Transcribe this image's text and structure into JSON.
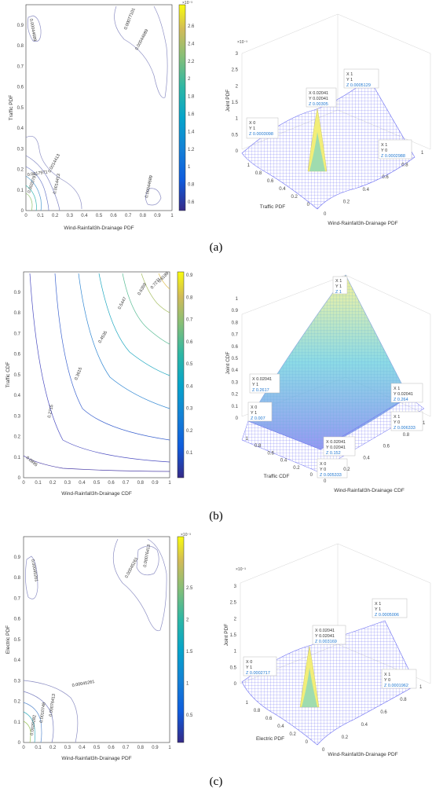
{
  "panels": [
    {
      "label": "(a)",
      "contour": {
        "xlabel": "Wind-Rainfall3h-Drainage PDF",
        "ylabel": "Traffic PDF",
        "xticks": [
          "0",
          "0.1",
          "0.2",
          "0.3",
          "0.4",
          "0.5",
          "0.6",
          "0.7",
          "0.8",
          "0.9",
          "1"
        ],
        "yticks": [
          "0",
          "0.1",
          "0.2",
          "0.3",
          "0.4",
          "0.5",
          "0.6",
          "0.7",
          "0.8",
          "0.9"
        ],
        "colorbar_ticks": [
          "0.6",
          "0.8",
          "1",
          "1.2",
          "1.4",
          "1.6",
          "1.8",
          "2",
          "2.2",
          "2.4",
          "2.6"
        ],
        "colorbar_multiplier": "×10⁻³",
        "levels": [
          "0.00044689",
          "0.00077101",
          "0.00044689",
          "0.0014413",
          "0.0014413",
          "0.0017971",
          "0.0020797",
          "0.00044689"
        ]
      },
      "surface": {
        "xlabel": "Wind-Rainfall3h-Drainage PDF",
        "ylabel": "Traffic PDF",
        "zlabel": "Joint PDF",
        "zmultiplier": "×10⁻³",
        "zticks": [
          "0",
          "0.5",
          "1",
          "1.5",
          "2",
          "2.5",
          "3"
        ],
        "xticks": [
          "0",
          "0.2",
          "0.4",
          "0.6",
          "0.8",
          "1"
        ],
        "yticks": [
          "0",
          "0.2",
          "0.4",
          "0.6",
          "0.8",
          "1"
        ],
        "datatips": [
          {
            "x": "X 0",
            "y": "Y 1",
            "z": "Z 0.0003098"
          },
          {
            "x": "X 0.02041",
            "y": "Y 0.02041",
            "z": "Z 0.00305"
          },
          {
            "x": "X 1",
            "y": "Y 1",
            "z": "Z 0.0005129"
          },
          {
            "x": "X 1",
            "y": "Y 0",
            "z": "Z 0.0002988"
          }
        ]
      }
    },
    {
      "label": "(b)",
      "contour": {
        "xlabel": "Wind-Rainfall3h-Drainage CDF",
        "ylabel": "Traffic CDF",
        "xticks": [
          "0",
          "0.1",
          "0.2",
          "0.3",
          "0.4",
          "0.5",
          "0.6",
          "0.7",
          "0.8",
          "0.9",
          "1"
        ],
        "yticks": [
          "0",
          "0.1",
          "0.2",
          "0.3",
          "0.4",
          "0.5",
          "0.6",
          "0.7",
          "0.8",
          "0.9"
        ],
        "colorbar_ticks": [
          "0.1",
          "0.2",
          "0.3",
          "0.4",
          "0.5",
          "0.6",
          "0.7",
          "0.8",
          "0.9"
        ],
        "levels": [
          "0.0895",
          "0.2715",
          "0.3615",
          "0.4535",
          "0.5447",
          "0.6359",
          "0.7271",
          "0.8189"
        ]
      },
      "surface": {
        "xlabel": "Wind-Rainfall3h-Drainage CDF",
        "ylabel": "Traffic CDF",
        "zlabel": "Joint CDF",
        "zticks": [
          "0",
          "0.1",
          "0.2",
          "0.3",
          "0.4",
          "0.5",
          "0.6",
          "0.7",
          "0.8",
          "0.9",
          "1"
        ],
        "xticks": [
          "0",
          "0.2",
          "0.4",
          "0.6",
          "0.8",
          "1"
        ],
        "yticks": [
          "0",
          "0.2",
          "0.4",
          "0.6",
          "0.8",
          "1"
        ],
        "datatips": [
          {
            "x": "X 1",
            "y": "Y 1",
            "z": "Z 1"
          },
          {
            "x": "X 0.02041",
            "y": "Y 1",
            "z": "Z 0.2617"
          },
          {
            "x": "X 0",
            "y": "Y 1",
            "z": "Z 0.007"
          },
          {
            "x": "X 1",
            "y": "Y 0.02041",
            "z": "Z 0.264"
          },
          {
            "x": "X 1",
            "y": "Y 0",
            "z": "Z 0.006333"
          },
          {
            "x": "X 0.02041",
            "y": "Y 0.02041",
            "z": "Z 0.152"
          },
          {
            "x": "X 0",
            "y": "Y 0",
            "z": "Z 0.005333"
          }
        ]
      }
    },
    {
      "label": "(c)",
      "contour": {
        "xlabel": "Wind-Rainfall3h-Drainage PDF",
        "ylabel": "Electric PDF",
        "xticks": [
          "0",
          "0.1",
          "0.2",
          "0.3",
          "0.4",
          "0.5",
          "0.6",
          "0.7",
          "0.8",
          "0.9",
          "1"
        ],
        "yticks": [
          "0",
          "0.1",
          "0.2",
          "0.3",
          "0.4",
          "0.5",
          "0.6",
          "0.7",
          "0.8",
          "0.9"
        ],
        "colorbar_ticks": [
          "0.5",
          "1",
          "1.5",
          "2",
          "2.5"
        ],
        "colorbar_multiplier": "×10⁻³",
        "levels": [
          "0.00045261",
          "0.00045261",
          "0.00076413",
          "0.00045261",
          "0.00076413",
          "0.0010748",
          "0.0020282"
        ]
      },
      "surface": {
        "xlabel": "Wind-Rainfall3h-Drainage PDF",
        "ylabel": "Electric PDF",
        "zlabel": "Joint PDF",
        "zmultiplier": "×10⁻³",
        "zticks": [
          "0",
          "0.5",
          "1",
          "1.5",
          "2",
          "2.5",
          "3"
        ],
        "xticks": [
          "0",
          "0.2",
          "0.4",
          "0.6",
          "0.8",
          "1"
        ],
        "yticks": [
          "0",
          "0.2",
          "0.4",
          "0.6",
          "0.8",
          "1"
        ],
        "datatips": [
          {
            "x": "X 0",
            "y": "Y 1",
            "z": "Z 0.0002717"
          },
          {
            "x": "X 0.02041",
            "y": "Y 0.02041",
            "z": "Z 0.003169"
          },
          {
            "x": "X 1",
            "y": "Y 1",
            "z": "Z 0.0005006"
          },
          {
            "x": "X 1",
            "y": "Y 0",
            "z": "Z 0.0001962"
          }
        ]
      }
    }
  ],
  "chart_data": [
    {
      "type": "heatmap",
      "subtype": "contour",
      "panel": "(a)",
      "xlabel": "Wind-Rainfall3h-Drainage PDF",
      "ylabel": "Traffic PDF",
      "xlim": [
        0,
        1
      ],
      "ylim": [
        0,
        1
      ],
      "colorbar_range": [
        0.0005,
        0.0027
      ],
      "levels": [
        0.00044689,
        0.00077101,
        0.0014413,
        0.0017971,
        0.0020797
      ]
    },
    {
      "type": "scatter",
      "subtype": "surface3d",
      "panel": "(a)",
      "xlabel": "Wind-Rainfall3h-Drainage PDF",
      "ylabel": "Traffic PDF",
      "zlabel": "Joint PDF",
      "zlim": [
        0,
        0.003
      ],
      "points": [
        {
          "x": 0,
          "y": 1,
          "z": 0.0003098
        },
        {
          "x": 0.02041,
          "y": 0.02041,
          "z": 0.00305
        },
        {
          "x": 1,
          "y": 1,
          "z": 0.0005129
        },
        {
          "x": 1,
          "y": 0,
          "z": 0.0002988
        }
      ]
    },
    {
      "type": "heatmap",
      "subtype": "contour",
      "panel": "(b)",
      "xlabel": "Wind-Rainfall3h-Drainage CDF",
      "ylabel": "Traffic CDF",
      "xlim": [
        0,
        1
      ],
      "ylim": [
        0,
        1
      ],
      "colorbar_range": [
        0.1,
        0.9
      ],
      "levels": [
        0.0895,
        0.2715,
        0.3615,
        0.4535,
        0.5447,
        0.6359,
        0.7271,
        0.8189
      ]
    },
    {
      "type": "scatter",
      "subtype": "surface3d",
      "panel": "(b)",
      "xlabel": "Wind-Rainfall3h-Drainage CDF",
      "ylabel": "Traffic CDF",
      "zlabel": "Joint CDF",
      "zlim": [
        0,
        1
      ],
      "points": [
        {
          "x": 1,
          "y": 1,
          "z": 1
        },
        {
          "x": 0.02041,
          "y": 1,
          "z": 0.2617
        },
        {
          "x": 0,
          "y": 1,
          "z": 0.007
        },
        {
          "x": 1,
          "y": 0.02041,
          "z": 0.264
        },
        {
          "x": 1,
          "y": 0,
          "z": 0.006333
        },
        {
          "x": 0.02041,
          "y": 0.02041,
          "z": 0.152
        },
        {
          "x": 0,
          "y": 0,
          "z": 0.005333
        }
      ]
    },
    {
      "type": "heatmap",
      "subtype": "contour",
      "panel": "(c)",
      "xlabel": "Wind-Rainfall3h-Drainage PDF",
      "ylabel": "Electric PDF",
      "xlim": [
        0,
        1
      ],
      "ylim": [
        0,
        1
      ],
      "colorbar_range": [
        0.0004,
        0.0029
      ],
      "levels": [
        0.00045261,
        0.00076413,
        0.0010748,
        0.0020282
      ]
    },
    {
      "type": "scatter",
      "subtype": "surface3d",
      "panel": "(c)",
      "xlabel": "Wind-Rainfall3h-Drainage PDF",
      "ylabel": "Electric PDF",
      "zlabel": "Joint PDF",
      "zlim": [
        0,
        0.003
      ],
      "points": [
        {
          "x": 0,
          "y": 1,
          "z": 0.0002717
        },
        {
          "x": 0.02041,
          "y": 0.02041,
          "z": 0.003169
        },
        {
          "x": 1,
          "y": 1,
          "z": 0.0005006
        },
        {
          "x": 1,
          "y": 0,
          "z": 0.0001962
        }
      ]
    }
  ]
}
